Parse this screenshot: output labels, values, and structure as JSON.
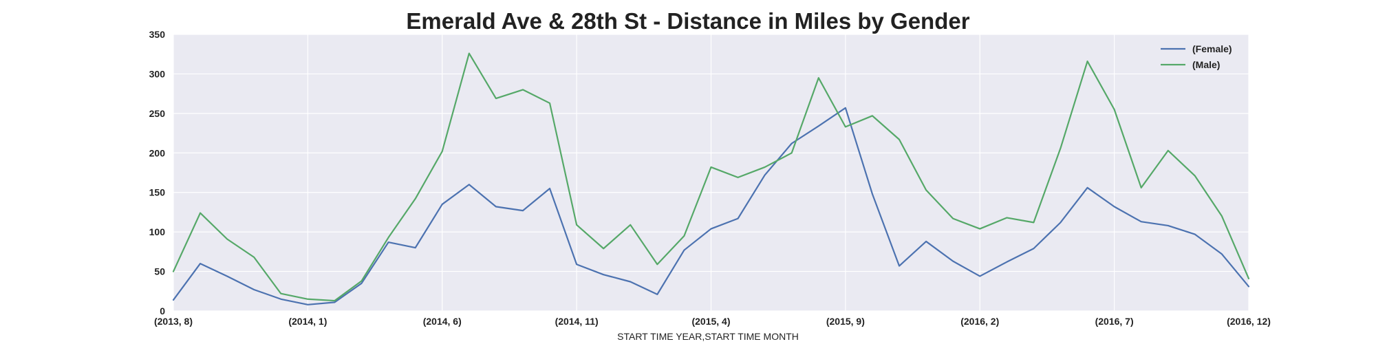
{
  "chart_data": {
    "type": "line",
    "title": "Emerald Ave & 28th St - Distance in Miles by Gender",
    "xlabel": "START TIME YEAR,START TIME MONTH",
    "ylabel": "",
    "x": [
      "(2013, 8)",
      "(2013, 9)",
      "(2013, 10)",
      "(2013, 11)",
      "(2013, 12)",
      "(2014, 1)",
      "(2014, 2)",
      "(2014, 3)",
      "(2014, 4)",
      "(2014, 5)",
      "(2014, 6)",
      "(2014, 7)",
      "(2014, 8)",
      "(2014, 9)",
      "(2014, 10)",
      "(2014, 11)",
      "(2014, 12)",
      "(2015, 1)",
      "(2015, 2)",
      "(2015, 3)",
      "(2015, 4)",
      "(2015, 5)",
      "(2015, 6)",
      "(2015, 7)",
      "(2015, 8)",
      "(2015, 9)",
      "(2015, 10)",
      "(2015, 11)",
      "(2015, 12)",
      "(2016, 1)",
      "(2016, 2)",
      "(2016, 3)",
      "(2016, 4)",
      "(2016, 5)",
      "(2016, 6)",
      "(2016, 7)",
      "(2016, 8)",
      "(2016, 9)",
      "(2016, 10)",
      "(2016, 11)",
      "(2016, 12)"
    ],
    "x_tick_labels": [
      "(2013, 8)",
      "(2014, 1)",
      "(2014, 6)",
      "(2014, 11)",
      "(2015, 4)",
      "(2015, 9)",
      "(2016, 2)",
      "(2016, 7)",
      "(2016, 12)"
    ],
    "ylim": [
      0,
      350
    ],
    "y_ticks": [
      0,
      50,
      100,
      150,
      200,
      250,
      300,
      350
    ],
    "grid": true,
    "legend_position": "top-right",
    "series": [
      {
        "name": "(Female)",
        "color": "#4c72b0",
        "values": [
          14,
          60,
          44,
          27,
          15,
          8,
          11,
          35,
          87,
          80,
          135,
          160,
          132,
          127,
          155,
          59,
          46,
          37,
          21,
          77,
          104,
          117,
          172,
          212,
          234,
          257,
          148,
          57,
          88,
          63,
          44,
          62,
          79,
          112,
          156,
          132,
          113,
          108,
          97,
          72,
          31
        ]
      },
      {
        "name": "(Male)",
        "color": "#55a868",
        "values": [
          50,
          124,
          91,
          68,
          22,
          15,
          13,
          38,
          93,
          142,
          202,
          326,
          269,
          280,
          263,
          109,
          79,
          109,
          59,
          95,
          182,
          169,
          182,
          200,
          295,
          233,
          247,
          217,
          153,
          117,
          104,
          118,
          112,
          206,
          316,
          255,
          156,
          203,
          171,
          120,
          41
        ]
      }
    ]
  }
}
